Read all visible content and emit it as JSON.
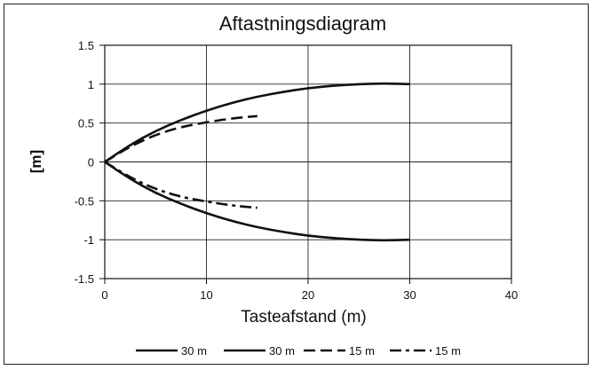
{
  "chart_data": {
    "type": "line",
    "title": "Aftastningsdiagram",
    "xlabel": "Tasteafstand (m)",
    "ylabel": "[m]",
    "xlim": [
      0,
      40
    ],
    "ylim": [
      -1.5,
      1.5
    ],
    "x_ticks": [
      "0",
      "10",
      "20",
      "30",
      "40"
    ],
    "y_ticks": [
      "1.5",
      "1",
      "0.5",
      "0",
      "-0.5",
      "-1",
      "-1.5"
    ],
    "grid": true,
    "legend_position": "bottom",
    "series": [
      {
        "name": "30 m",
        "style": "solid",
        "color": "#111111",
        "x": [
          0,
          2.5,
          5,
          7.5,
          10,
          12.5,
          15,
          17.5,
          20,
          22.5,
          25,
          27.5,
          30
        ],
        "y": [
          0,
          0.22,
          0.4,
          0.54,
          0.66,
          0.76,
          0.84,
          0.9,
          0.95,
          0.98,
          1.0,
          1.01,
          1.0
        ]
      },
      {
        "name": "30 m",
        "style": "solid",
        "color": "#111111",
        "x": [
          0,
          2.5,
          5,
          7.5,
          10,
          12.5,
          15,
          17.5,
          20,
          22.5,
          25,
          27.5,
          30
        ],
        "y": [
          0,
          -0.22,
          -0.4,
          -0.54,
          -0.66,
          -0.76,
          -0.84,
          -0.9,
          -0.95,
          -0.98,
          -1.0,
          -1.01,
          -1.0
        ]
      },
      {
        "name": "15 m",
        "style": "dashed",
        "color": "#111111",
        "x": [
          0,
          2.5,
          5,
          7.5,
          10,
          12.5,
          15
        ],
        "y": [
          0,
          0.2,
          0.35,
          0.45,
          0.51,
          0.56,
          0.59
        ]
      },
      {
        "name": "15 m",
        "style": "dashdot",
        "color": "#111111",
        "x": [
          0,
          2.5,
          5,
          7.5,
          10,
          12.5,
          15
        ],
        "y": [
          0,
          -0.2,
          -0.35,
          -0.45,
          -0.51,
          -0.56,
          -0.59
        ]
      }
    ]
  }
}
